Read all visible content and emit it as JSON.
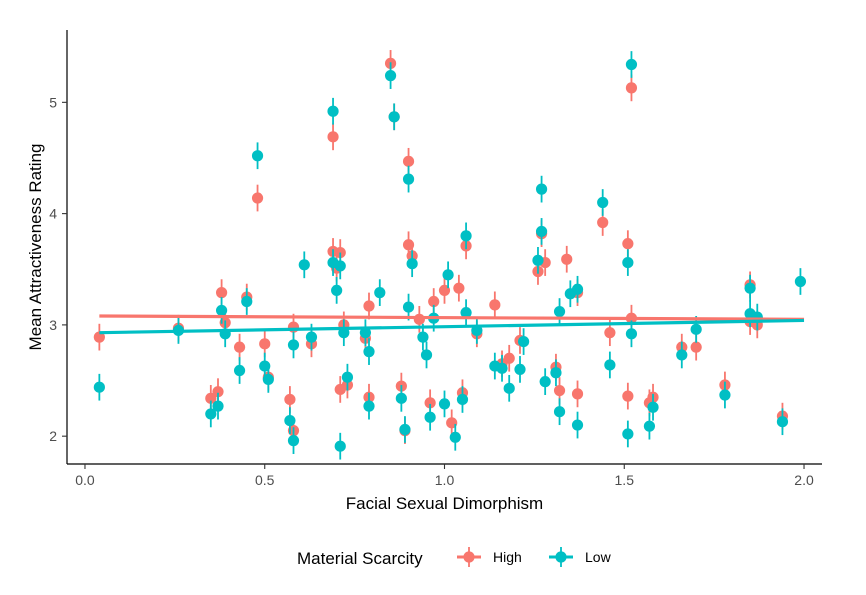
{
  "chart_data": {
    "type": "scatter",
    "title": "",
    "xlabel": "Facial Sexual Dimorphism",
    "ylabel": "Mean Attractiveness Rating",
    "xlim": [
      -0.05,
      2.05
    ],
    "ylim": [
      1.75,
      5.65
    ],
    "x_ticks": [
      0.0,
      0.5,
      1.0,
      1.5,
      2.0
    ],
    "x_tick_labels": [
      "0.0",
      "0.5",
      "1.0",
      "1.5",
      "2.0"
    ],
    "y_ticks": [
      2,
      3,
      4,
      5
    ],
    "y_tick_labels": [
      "2",
      "3",
      "4",
      "5"
    ],
    "grid": false,
    "legend": {
      "title": "Material Scarcity",
      "position": "bottom"
    },
    "error_bar_halfwidth": 0.12,
    "series": [
      {
        "name": "High",
        "color": "#F8766D",
        "fit_line": [
          [
            0.04,
            3.08
          ],
          [
            2.0,
            3.05
          ]
        ],
        "points": [
          [
            0.04,
            2.89
          ],
          [
            0.26,
            2.97
          ],
          [
            0.35,
            2.34
          ],
          [
            0.37,
            2.4
          ],
          [
            0.38,
            3.29
          ],
          [
            0.39,
            3.02
          ],
          [
            0.43,
            2.8
          ],
          [
            0.45,
            3.25
          ],
          [
            0.48,
            4.14
          ],
          [
            0.5,
            2.83
          ],
          [
            0.51,
            2.53
          ],
          [
            0.57,
            2.33
          ],
          [
            0.58,
            2.05
          ],
          [
            0.58,
            2.98
          ],
          [
            0.63,
            2.83
          ],
          [
            0.69,
            4.69
          ],
          [
            0.69,
            3.66
          ],
          [
            0.7,
            3.51
          ],
          [
            0.71,
            3.65
          ],
          [
            0.71,
            2.42
          ],
          [
            0.72,
            3.0
          ],
          [
            0.73,
            2.46
          ],
          [
            0.78,
            2.88
          ],
          [
            0.79,
            3.17
          ],
          [
            0.79,
            2.35
          ],
          [
            0.85,
            5.35
          ],
          [
            0.86,
            4.87
          ],
          [
            0.88,
            2.45
          ],
          [
            0.89,
            2.05
          ],
          [
            0.9,
            4.47
          ],
          [
            0.9,
            3.72
          ],
          [
            0.91,
            3.62
          ],
          [
            0.93,
            3.05
          ],
          [
            0.96,
            2.3
          ],
          [
            0.97,
            3.21
          ],
          [
            1.0,
            3.31
          ],
          [
            1.02,
            2.12
          ],
          [
            1.04,
            3.33
          ],
          [
            1.05,
            2.39
          ],
          [
            1.06,
            3.71
          ],
          [
            1.09,
            2.92
          ],
          [
            1.14,
            3.18
          ],
          [
            1.16,
            2.65
          ],
          [
            1.18,
            2.7
          ],
          [
            1.21,
            2.86
          ],
          [
            1.26,
            3.48
          ],
          [
            1.27,
            3.82
          ],
          [
            1.28,
            3.56
          ],
          [
            1.31,
            2.62
          ],
          [
            1.32,
            2.41
          ],
          [
            1.34,
            3.59
          ],
          [
            1.37,
            3.29
          ],
          [
            1.37,
            2.38
          ],
          [
            1.44,
            3.92
          ],
          [
            1.46,
            2.93
          ],
          [
            1.51,
            3.73
          ],
          [
            1.51,
            2.36
          ],
          [
            1.52,
            5.13
          ],
          [
            1.52,
            3.06
          ],
          [
            1.57,
            2.3
          ],
          [
            1.58,
            2.35
          ],
          [
            1.66,
            2.8
          ],
          [
            1.7,
            2.8
          ],
          [
            1.78,
            2.46
          ],
          [
            1.85,
            3.36
          ],
          [
            1.85,
            3.03
          ],
          [
            1.87,
            3.0
          ],
          [
            1.94,
            2.18
          ]
        ]
      },
      {
        "name": "Low",
        "color": "#00BFC4",
        "fit_line": [
          [
            0.04,
            2.93
          ],
          [
            2.0,
            3.04
          ]
        ],
        "points": [
          [
            0.04,
            2.44
          ],
          [
            0.26,
            2.95
          ],
          [
            0.35,
            2.2
          ],
          [
            0.37,
            2.27
          ],
          [
            0.38,
            3.13
          ],
          [
            0.39,
            2.92
          ],
          [
            0.43,
            2.59
          ],
          [
            0.45,
            3.21
          ],
          [
            0.48,
            4.52
          ],
          [
            0.5,
            2.63
          ],
          [
            0.51,
            2.51
          ],
          [
            0.57,
            2.14
          ],
          [
            0.58,
            1.96
          ],
          [
            0.58,
            2.82
          ],
          [
            0.61,
            3.54
          ],
          [
            0.63,
            2.89
          ],
          [
            0.69,
            4.92
          ],
          [
            0.69,
            3.56
          ],
          [
            0.7,
            3.31
          ],
          [
            0.71,
            3.53
          ],
          [
            0.71,
            1.91
          ],
          [
            0.72,
            2.93
          ],
          [
            0.73,
            2.53
          ],
          [
            0.78,
            2.93
          ],
          [
            0.79,
            2.76
          ],
          [
            0.79,
            2.27
          ],
          [
            0.82,
            3.29
          ],
          [
            0.85,
            5.24
          ],
          [
            0.86,
            4.87
          ],
          [
            0.88,
            2.34
          ],
          [
            0.89,
            2.06
          ],
          [
            0.9,
            4.31
          ],
          [
            0.9,
            3.16
          ],
          [
            0.91,
            3.55
          ],
          [
            0.94,
            2.89
          ],
          [
            0.95,
            2.73
          ],
          [
            0.96,
            2.17
          ],
          [
            0.97,
            3.06
          ],
          [
            1.0,
            2.29
          ],
          [
            1.01,
            3.45
          ],
          [
            1.03,
            1.99
          ],
          [
            1.05,
            2.33
          ],
          [
            1.06,
            3.8
          ],
          [
            1.06,
            3.11
          ],
          [
            1.09,
            2.95
          ],
          [
            1.14,
            2.63
          ],
          [
            1.16,
            2.61
          ],
          [
            1.18,
            2.43
          ],
          [
            1.21,
            2.6
          ],
          [
            1.22,
            2.85
          ],
          [
            1.26,
            3.58
          ],
          [
            1.27,
            4.22
          ],
          [
            1.27,
            3.84
          ],
          [
            1.28,
            2.49
          ],
          [
            1.31,
            2.57
          ],
          [
            1.32,
            2.22
          ],
          [
            1.32,
            3.12
          ],
          [
            1.35,
            3.28
          ],
          [
            1.37,
            3.32
          ],
          [
            1.37,
            2.1
          ],
          [
            1.44,
            4.1
          ],
          [
            1.46,
            2.64
          ],
          [
            1.51,
            3.56
          ],
          [
            1.51,
            2.02
          ],
          [
            1.52,
            5.34
          ],
          [
            1.52,
            2.92
          ],
          [
            1.57,
            2.09
          ],
          [
            1.58,
            2.26
          ],
          [
            1.66,
            2.73
          ],
          [
            1.7,
            2.96
          ],
          [
            1.78,
            2.37
          ],
          [
            1.85,
            3.33
          ],
          [
            1.85,
            3.1
          ],
          [
            1.87,
            3.07
          ],
          [
            1.94,
            2.13
          ],
          [
            1.99,
            3.39
          ]
        ]
      }
    ]
  }
}
